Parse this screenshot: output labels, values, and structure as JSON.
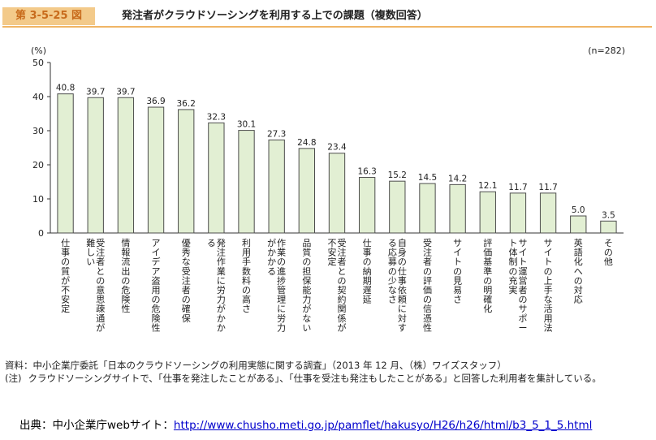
{
  "figure": {
    "number": "第 3-5-25 図",
    "title": "発注者がクラウドソーシングを利用する上での課題（複数回答）"
  },
  "chart_data": {
    "type": "bar",
    "title": "発注者がクラウドソーシングを利用する上での課題（複数回答）",
    "ylabel": "(%)",
    "sample_size": "(n=282)",
    "ylim": [
      0,
      50
    ],
    "yticks": [
      0,
      10,
      20,
      30,
      40,
      50
    ],
    "bar_color": "#e2efd3",
    "bar_border": "#4d4d4d",
    "categories": [
      "仕事の質が不安定",
      "受注者との意思疎通が難しい",
      "情報流出の危険性",
      "アイデア盗用の危険性",
      "優秀な受注者の確保",
      "発注作業に労力がかかる",
      "利用手数料の高さ",
      "作業の進捗管理に労力がかかる",
      "品質の担保能力がない",
      "受注者との契約関係が不安定",
      "仕事の納期遅延",
      "自身の仕事依頼に対する応募の少なさ",
      "受注者の評価の信憑性",
      "サイトの見易さ",
      "評価基準の明確化",
      "サイト運営者のサポート体制の充実",
      "サイトの上手な活用法",
      "英語化への対応",
      "その他"
    ],
    "values": [
      40.8,
      39.7,
      39.7,
      36.9,
      36.2,
      32.3,
      30.1,
      27.3,
      24.8,
      23.4,
      16.3,
      15.2,
      14.5,
      14.2,
      12.1,
      11.7,
      11.7,
      5.0,
      3.5
    ],
    "value_labels": [
      "40.8",
      "39.7",
      "39.7",
      "36.9",
      "36.2",
      "32.3",
      "30.1",
      "27.3",
      "24.8",
      "23.4",
      "16.3",
      "15.2",
      "14.5",
      "14.2",
      "12.1",
      "11.7",
      "11.7",
      "5.0",
      "3.5"
    ]
  },
  "notes": {
    "source_label": "資料：",
    "source_text": "中小企業庁委託「日本のクラウドソーシングの利用実態に関する調査」（2013 年 12 月、（株）ワイズスタッフ）",
    "note_label": "(注)",
    "note_text": "クラウドソーシングサイトで、「仕事を発注したことがある」、「仕事を受注も発注もしたことがある」と回答した利用者を集計している。"
  },
  "citation": {
    "prefix": "出典：中小企業庁webサイト：",
    "url": "http://www.chusho.meti.go.jp/pamflet/hakusyo/H26/h26/html/b3_5_1_5.html"
  }
}
